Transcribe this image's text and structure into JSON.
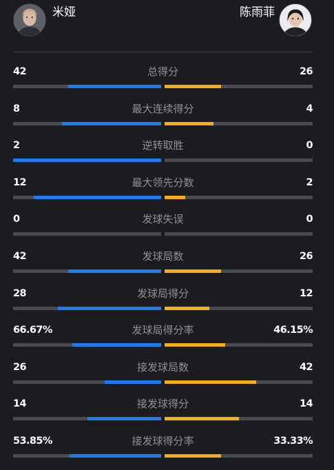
{
  "colors": {
    "background": "#1b1c20",
    "left_bar": "#1e7cf2",
    "right_bar": "#f7ad17",
    "track": "#4a4b50",
    "label": "#8f9096"
  },
  "players": {
    "left": {
      "name": "米娅",
      "avatar_icon": "player-photo-icon"
    },
    "right": {
      "name": "陈雨菲",
      "avatar_icon": "player-photo-icon"
    }
  },
  "stats": [
    {
      "label": "总得分",
      "left": "42",
      "right": "26",
      "left_fill": 0.63,
      "right_fill": 0.38
    },
    {
      "label": "最大连续得分",
      "left": "8",
      "right": "4",
      "left_fill": 0.67,
      "right_fill": 0.33
    },
    {
      "label": "逆转取胜",
      "left": "2",
      "right": "0",
      "left_fill": 1.0,
      "right_fill": 0.0
    },
    {
      "label": "最大领先分数",
      "left": "12",
      "right": "2",
      "left_fill": 0.86,
      "right_fill": 0.14
    },
    {
      "label": "发球失误",
      "left": "0",
      "right": "0",
      "left_fill": 0.0,
      "right_fill": 0.0
    },
    {
      "label": "发球局数",
      "left": "42",
      "right": "26",
      "left_fill": 0.63,
      "right_fill": 0.38
    },
    {
      "label": "发球局得分",
      "left": "28",
      "right": "12",
      "left_fill": 0.7,
      "right_fill": 0.3
    },
    {
      "label": "发球局得分率",
      "left": "66.67%",
      "right": "46.15%",
      "left_fill": 0.6,
      "right_fill": 0.41
    },
    {
      "label": "接发球局数",
      "left": "26",
      "right": "42",
      "left_fill": 0.38,
      "right_fill": 0.62
    },
    {
      "label": "接发球得分",
      "left": "14",
      "right": "14",
      "left_fill": 0.5,
      "right_fill": 0.5
    },
    {
      "label": "接发球得分率",
      "left": "53.85%",
      "right": "33.33%",
      "left_fill": 0.62,
      "right_fill": 0.38
    }
  ]
}
